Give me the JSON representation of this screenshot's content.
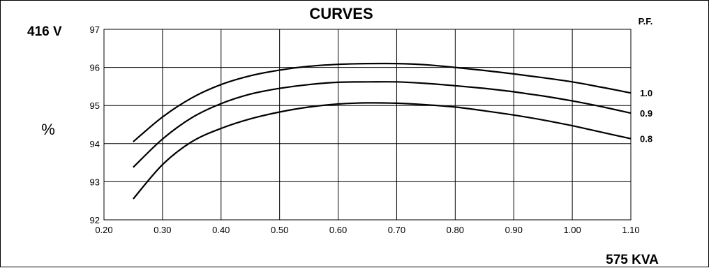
{
  "chart_data": {
    "type": "line",
    "title": "CURVES",
    "voltage_label": "416 V",
    "ylabel": "%",
    "xlabel": "575 KVA",
    "legend_title": "P.F.",
    "xlim": [
      0.2,
      1.1
    ],
    "ylim": [
      92,
      97
    ],
    "grid": true,
    "x_ticks": [
      "0.20",
      "0.30",
      "0.40",
      "0.50",
      "0.60",
      "0.70",
      "0.80",
      "0.90",
      "1.00",
      "1.10"
    ],
    "y_ticks": [
      "97",
      "96",
      "95",
      "94",
      "93",
      "92"
    ],
    "x": [
      0.25,
      0.3,
      0.35,
      0.4,
      0.45,
      0.5,
      0.55,
      0.6,
      0.65,
      0.7,
      0.75,
      0.8,
      0.85,
      0.9,
      0.95,
      1.0,
      1.05,
      1.1
    ],
    "series": [
      {
        "name": "1.0",
        "values": [
          94.05,
          94.7,
          95.2,
          95.55,
          95.78,
          95.93,
          96.03,
          96.08,
          96.1,
          96.1,
          96.07,
          96.0,
          95.92,
          95.83,
          95.73,
          95.62,
          95.48,
          95.33
        ]
      },
      {
        "name": "0.9",
        "values": [
          93.38,
          94.12,
          94.68,
          95.05,
          95.3,
          95.45,
          95.55,
          95.61,
          95.62,
          95.62,
          95.58,
          95.52,
          95.45,
          95.36,
          95.25,
          95.12,
          94.97,
          94.8
        ]
      },
      {
        "name": "0.8",
        "values": [
          92.55,
          93.45,
          94.05,
          94.4,
          94.65,
          94.83,
          94.96,
          95.04,
          95.07,
          95.06,
          95.02,
          94.96,
          94.86,
          94.75,
          94.62,
          94.47,
          94.3,
          94.13
        ]
      }
    ]
  }
}
